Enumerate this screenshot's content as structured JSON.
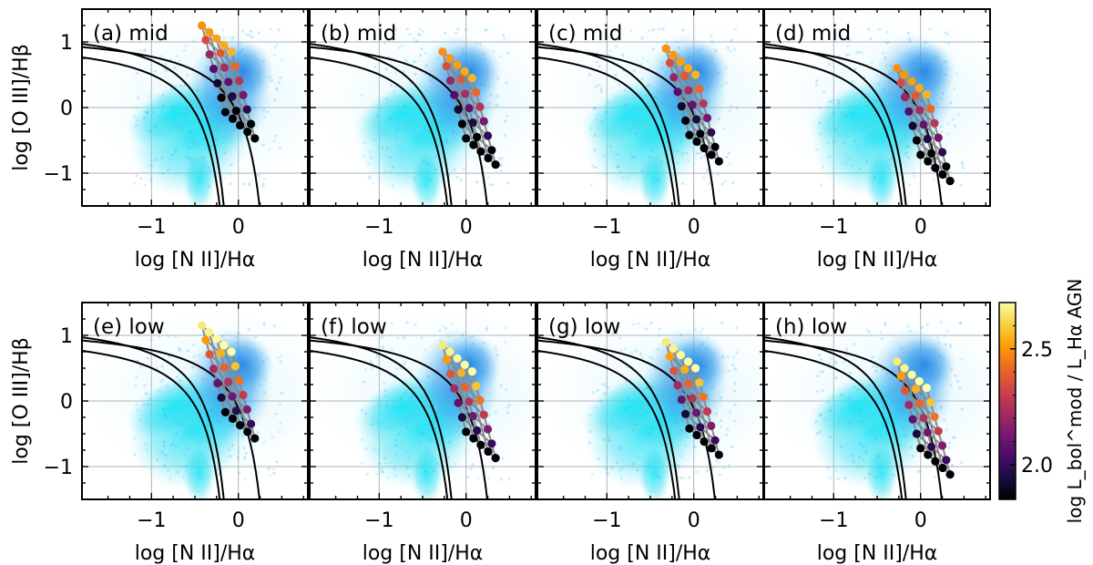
{
  "figure": {
    "ylabel": "log [O III]/Hβ",
    "xlabel": "log [N II]/Hα",
    "colorbar": {
      "label": "log L_bol^mod / L_Hα AGN",
      "ticks": [
        "2.0",
        "2.5"
      ],
      "range": [
        1.85,
        2.7
      ],
      "colors": [
        "#000004",
        "#1b0c41",
        "#4a0c6b",
        "#781c6d",
        "#a52c60",
        "#cf4446",
        "#ed6925",
        "#fb9b06",
        "#f7d13d",
        "#fcffa4"
      ]
    }
  },
  "chart_data": [
    {
      "type": "scatter",
      "panel": "(a) mid",
      "tag": "(a)",
      "variant": "mid",
      "grid_shift": [
        0.0,
        0.0
      ],
      "xlim": [
        -1.8,
        0.8
      ],
      "ylim": [
        -1.5,
        1.5
      ],
      "xticks": [
        "−1",
        "0"
      ],
      "yticks": [
        "−1",
        "0",
        "1"
      ]
    },
    {
      "type": "scatter",
      "panel": "(b) mid",
      "tag": "(b)",
      "variant": "mid",
      "grid_shift": [
        0.15,
        -0.4
      ],
      "xlim": [
        -1.8,
        0.8
      ],
      "ylim": [
        -1.5,
        1.5
      ],
      "xticks": [
        "−1",
        "0"
      ],
      "yticks": [
        "−1",
        "0",
        "1"
      ]
    },
    {
      "type": "scatter",
      "panel": "(c) mid",
      "tag": "(c)",
      "variant": "mid",
      "grid_shift": [
        0.1,
        -0.35
      ],
      "xlim": [
        -1.8,
        0.8
      ],
      "ylim": [
        -1.5,
        1.5
      ],
      "xticks": [
        "−1",
        "0"
      ],
      "yticks": [
        "−1",
        "0",
        "1"
      ]
    },
    {
      "type": "scatter",
      "panel": "(d) mid",
      "tag": "(d)",
      "variant": "mid",
      "grid_shift": [
        0.15,
        -0.65
      ],
      "xlim": [
        -1.8,
        0.8
      ],
      "ylim": [
        -1.5,
        1.5
      ],
      "xticks": [
        "−1",
        "0"
      ],
      "yticks": [
        "−1",
        "0",
        "1"
      ]
    },
    {
      "type": "scatter",
      "panel": "(e) low",
      "tag": "(e)",
      "variant": "low",
      "grid_shift": [
        0.0,
        -0.1
      ],
      "xlim": [
        -1.8,
        0.8
      ],
      "ylim": [
        -1.5,
        1.5
      ],
      "xticks": [
        "−1",
        "0"
      ],
      "yticks": [
        "−1",
        "0",
        "1"
      ]
    },
    {
      "type": "scatter",
      "panel": "(f) low",
      "tag": "(f)",
      "variant": "low",
      "grid_shift": [
        0.15,
        -0.4
      ],
      "xlim": [
        -1.8,
        0.8
      ],
      "ylim": [
        -1.5,
        1.5
      ],
      "xticks": [
        "−1",
        "0"
      ],
      "yticks": [
        "−1",
        "0",
        "1"
      ]
    },
    {
      "type": "scatter",
      "panel": "(g) low",
      "tag": "(g)",
      "variant": "low",
      "grid_shift": [
        0.1,
        -0.35
      ],
      "xlim": [
        -1.8,
        0.8
      ],
      "ylim": [
        -1.5,
        1.5
      ],
      "xticks": [
        "−1",
        "0"
      ],
      "yticks": [
        "−1",
        "0",
        "1"
      ]
    },
    {
      "type": "scatter",
      "panel": "(h) low",
      "tag": "(h)",
      "variant": "low",
      "grid_shift": [
        0.15,
        -0.65
      ],
      "xlim": [
        -1.8,
        0.8
      ],
      "ylim": [
        -1.5,
        1.5
      ],
      "xticks": [
        "−1",
        "0"
      ],
      "yticks": [
        "−1",
        "0",
        "1"
      ]
    }
  ]
}
